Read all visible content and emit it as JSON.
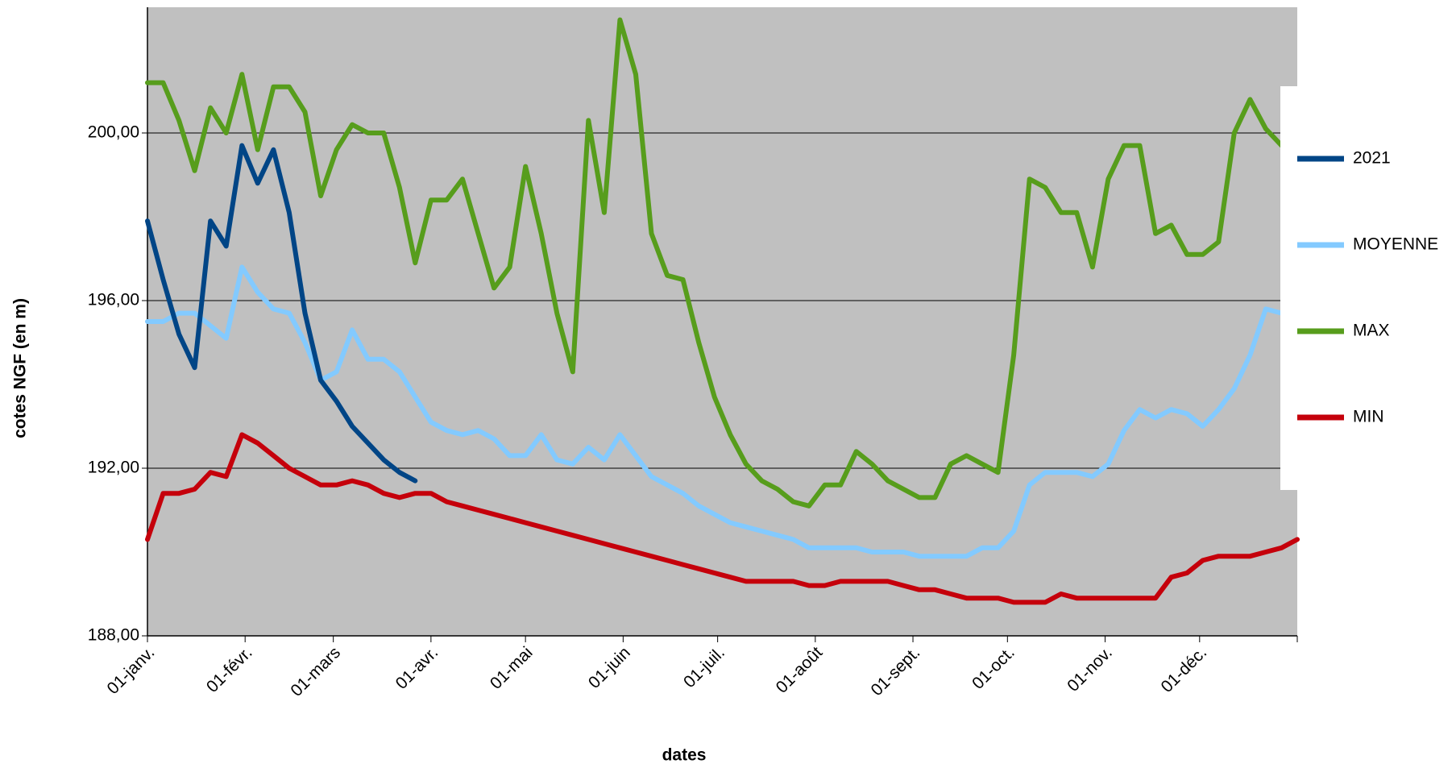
{
  "chart_data": {
    "type": "line",
    "x_label": "dates",
    "y_label": "cotes NGF (en m)",
    "x": [
      0,
      5,
      10,
      15,
      20,
      25,
      30,
      35,
      40,
      45,
      50,
      55,
      60,
      65,
      70,
      75,
      80,
      85,
      90,
      95,
      100,
      105,
      110,
      115,
      120,
      125,
      130,
      135,
      140,
      145,
      150,
      155,
      160,
      165,
      170,
      175,
      180,
      185,
      190,
      195,
      200,
      205,
      210,
      215,
      220,
      225,
      230,
      235,
      240,
      245,
      250,
      255,
      260,
      265,
      270,
      275,
      280,
      285,
      290,
      295,
      300,
      305,
      310,
      315,
      320,
      325,
      330,
      335,
      340,
      345,
      350,
      355,
      360,
      365
    ],
    "xlim": [
      0,
      365
    ],
    "xticks": [
      {
        "value": 0,
        "label": "01-janv."
      },
      {
        "value": 31,
        "label": "01-févr."
      },
      {
        "value": 59,
        "label": "01-mars"
      },
      {
        "value": 90,
        "label": "01-avr."
      },
      {
        "value": 120,
        "label": "01-mai"
      },
      {
        "value": 151,
        "label": "01-juin"
      },
      {
        "value": 181,
        "label": "01-juil."
      },
      {
        "value": 212,
        "label": "01-août"
      },
      {
        "value": 243,
        "label": "01-sept."
      },
      {
        "value": 273,
        "label": "01-oct."
      },
      {
        "value": 304,
        "label": "01-nov."
      },
      {
        "value": 334,
        "label": "01-déc."
      }
    ],
    "ylim": [
      188,
      203
    ],
    "yticks": [
      {
        "value": 188,
        "label": "188,00"
      },
      {
        "value": 192,
        "label": "192,00"
      },
      {
        "value": 196,
        "label": "196,00"
      },
      {
        "value": 200,
        "label": "200,00"
      }
    ],
    "grid": true,
    "legend": "right",
    "series": [
      {
        "name": "2021",
        "color": "#004586",
        "values": [
          197.9,
          196.5,
          195.2,
          194.4,
          197.9,
          197.3,
          199.7,
          198.8,
          199.6,
          198.1,
          195.7,
          194.1,
          193.6,
          193.0,
          192.6,
          192.2,
          191.9,
          191.7,
          null,
          null,
          null,
          null,
          null,
          null,
          null,
          null,
          null,
          null,
          null,
          null,
          null,
          null,
          null,
          null,
          null,
          null,
          null,
          null,
          null,
          null,
          null,
          null,
          null,
          null,
          null,
          null,
          null,
          null,
          null,
          null,
          null,
          null,
          null,
          null,
          null,
          null,
          null,
          null,
          null,
          null,
          null,
          null,
          null,
          null,
          null,
          null,
          null,
          null,
          null,
          null,
          null,
          null,
          null,
          null
        ]
      },
      {
        "name": "MOYENNE",
        "color": "#83caff",
        "values": [
          195.5,
          195.5,
          195.7,
          195.7,
          195.4,
          195.1,
          196.8,
          196.2,
          195.8,
          195.7,
          195.0,
          194.1,
          194.3,
          195.3,
          194.6,
          194.6,
          194.3,
          193.7,
          193.1,
          192.9,
          192.8,
          192.9,
          192.7,
          192.3,
          192.3,
          192.8,
          192.2,
          192.1,
          192.5,
          192.2,
          192.8,
          192.3,
          191.8,
          191.6,
          191.4,
          191.1,
          190.9,
          190.7,
          190.6,
          190.5,
          190.4,
          190.3,
          190.1,
          190.1,
          190.1,
          190.1,
          190.0,
          190.0,
          190.0,
          189.9,
          189.9,
          189.9,
          189.9,
          190.1,
          190.1,
          190.5,
          191.6,
          191.9,
          191.9,
          191.9,
          191.8,
          192.1,
          192.9,
          193.4,
          193.2,
          193.4,
          193.3,
          193.0,
          193.4,
          193.9,
          194.7,
          195.8,
          195.7,
          195.5
        ]
      },
      {
        "name": "MAX",
        "color": "#579d1c",
        "values": [
          201.2,
          201.2,
          200.3,
          199.1,
          200.6,
          200.0,
          201.4,
          199.6,
          201.1,
          201.1,
          200.5,
          198.5,
          199.6,
          200.2,
          200.0,
          200.0,
          198.7,
          196.9,
          198.4,
          198.4,
          198.9,
          197.6,
          196.3,
          196.8,
          199.2,
          197.6,
          195.7,
          194.3,
          200.3,
          198.1,
          202.7,
          201.4,
          197.6,
          196.6,
          196.5,
          195.0,
          193.7,
          192.8,
          192.1,
          191.7,
          191.5,
          191.2,
          191.1,
          191.6,
          191.6,
          192.4,
          192.1,
          191.7,
          191.5,
          191.3,
          191.3,
          192.1,
          192.3,
          192.1,
          191.9,
          194.7,
          198.9,
          198.7,
          198.1,
          198.1,
          196.8,
          198.9,
          199.7,
          199.7,
          197.6,
          197.8,
          197.1,
          197.1,
          197.4,
          200.0,
          200.8,
          200.1,
          199.7,
          199.5
        ]
      },
      {
        "name": "MIN",
        "color": "#c5000b",
        "values": [
          190.3,
          191.4,
          191.4,
          191.5,
          191.9,
          191.8,
          192.8,
          192.6,
          192.3,
          192.0,
          191.8,
          191.6,
          191.6,
          191.7,
          191.6,
          191.4,
          191.3,
          191.4,
          191.4,
          191.2,
          191.1,
          191.0,
          190.9,
          190.8,
          190.7,
          190.6,
          190.5,
          190.4,
          190.3,
          190.2,
          190.1,
          190.0,
          189.9,
          189.8,
          189.7,
          189.6,
          189.5,
          189.4,
          189.3,
          189.3,
          189.3,
          189.3,
          189.2,
          189.2,
          189.3,
          189.3,
          189.3,
          189.3,
          189.2,
          189.1,
          189.1,
          189.0,
          188.9,
          188.9,
          188.9,
          188.8,
          188.8,
          188.8,
          189.0,
          188.9,
          188.9,
          188.9,
          188.9,
          188.9,
          188.9,
          189.4,
          189.5,
          189.8,
          189.9,
          189.9,
          189.9,
          190.0,
          190.1,
          190.3
        ]
      }
    ]
  }
}
